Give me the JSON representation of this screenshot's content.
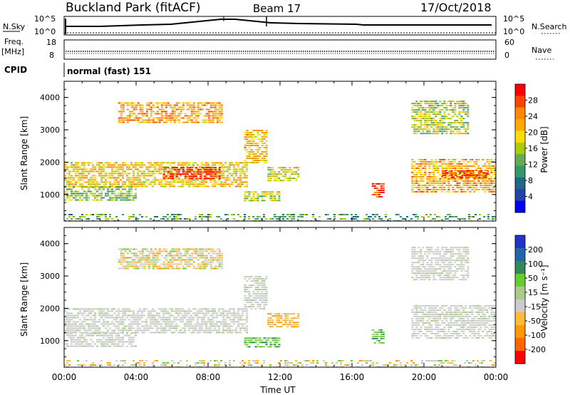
{
  "header": {
    "station": "Buckland Park (fitACF)",
    "beam": "Beam 17",
    "date": "17/Oct/2018"
  },
  "panels": {
    "noise": {
      "left_label": "N.Sky",
      "right_label": "N.Search",
      "left_ticks": [
        "10^5",
        "10^0"
      ],
      "right_ticks": [
        "10^5",
        "10^0"
      ]
    },
    "freq": {
      "left_label_1": "Freq.",
      "left_label_2": "[MHz]",
      "right_label": "Nave",
      "left_ticks": [
        "18",
        "8"
      ],
      "right_ticks": [
        "60",
        "0"
      ]
    },
    "cpid": {
      "label": "CPID",
      "text": "normal (fast) 151"
    }
  },
  "chart_data": [
    {
      "type": "heatmap",
      "title": "",
      "quantity": "Power",
      "ylabel": "Slant Range [km]",
      "xlabel": "",
      "ylim": [
        180,
        4500
      ],
      "y_ticks": [
        "1000",
        "2000",
        "3000",
        "4000"
      ],
      "colorbar_label": "Power [dB]",
      "colorbar_ticks": [
        "28",
        "24",
        "20",
        "16",
        "12",
        "8",
        "4"
      ],
      "colorbar_colors": [
        "#ff0000",
        "#ff4400",
        "#ff8800",
        "#ffaa00",
        "#ffdd00",
        "#aacc00",
        "#66aa55",
        "#339966",
        "#226688",
        "#2244aa",
        "#0000ff"
      ],
      "echo_regions": [
        {
          "t0": 0.0,
          "t1": 10.2,
          "r0": 1250,
          "r1": 2000,
          "level": 0.62
        },
        {
          "t0": 5.5,
          "t1": 8.7,
          "r0": 1500,
          "r1": 1850,
          "level": 0.95
        },
        {
          "t0": 3.0,
          "t1": 8.8,
          "r0": 3250,
          "r1": 3850,
          "level": 0.7
        },
        {
          "t0": 10.0,
          "t1": 11.3,
          "r0": 2000,
          "r1": 3000,
          "level": 0.65
        },
        {
          "t0": 11.3,
          "t1": 13.0,
          "r0": 1400,
          "r1": 1850,
          "level": 0.55
        },
        {
          "t0": 10.0,
          "t1": 12.0,
          "r0": 800,
          "r1": 1100,
          "level": 0.5
        },
        {
          "t0": 0.0,
          "t1": 4.0,
          "r0": 850,
          "r1": 1250,
          "level": 0.45
        },
        {
          "t0": 17.1,
          "t1": 17.7,
          "r0": 900,
          "r1": 1350,
          "level": 0.9
        },
        {
          "t0": 19.3,
          "t1": 24.0,
          "r0": 1100,
          "r1": 2100,
          "level": 0.7
        },
        {
          "t0": 21.0,
          "t1": 23.5,
          "r0": 1500,
          "r1": 1750,
          "level": 0.95
        },
        {
          "t0": 19.3,
          "t1": 22.5,
          "r0": 2900,
          "r1": 3900,
          "level": 0.5
        },
        {
          "t0": 0.0,
          "t1": 24.0,
          "r0": 180,
          "r1": 400,
          "level": 0.35
        }
      ]
    },
    {
      "type": "heatmap",
      "title": "",
      "quantity": "Velocity",
      "ylabel": "Slant Range [km]",
      "xlabel": "Time UT",
      "ylim": [
        180,
        4500
      ],
      "y_ticks": [
        "1000",
        "2000",
        "3000",
        "4000"
      ],
      "x_ticks": [
        "00:00",
        "04:00",
        "08:00",
        "12:00",
        "16:00",
        "20:00",
        "00:00"
      ],
      "colorbar_label": "Velocity [m s⁻¹]",
      "colorbar_ticks": [
        "200",
        "100",
        "50",
        "15",
        "-15",
        "-50",
        "-100",
        "-200"
      ],
      "colorbar_colors": [
        "#2233cc",
        "#2266aa",
        "#338855",
        "#66cc33",
        "#aacc88",
        "#cccccc",
        "#ffbb33",
        "#ff9900",
        "#ff6600",
        "#ff0000"
      ],
      "echo_regions": [
        {
          "t0": 0.0,
          "t1": 10.2,
          "r0": 1250,
          "r1": 2000,
          "class": "ground"
        },
        {
          "t0": 3.0,
          "t1": 8.8,
          "r0": 3250,
          "r1": 3850,
          "class": "mixed"
        },
        {
          "t0": 10.0,
          "t1": 11.3,
          "r0": 2000,
          "r1": 3000,
          "class": "ground"
        },
        {
          "t0": 11.3,
          "t1": 13.0,
          "r0": 1400,
          "r1": 1850,
          "class": "away"
        },
        {
          "t0": 10.0,
          "t1": 12.0,
          "r0": 800,
          "r1": 1100,
          "class": "toward"
        },
        {
          "t0": 0.0,
          "t1": 4.0,
          "r0": 850,
          "r1": 1250,
          "class": "ground"
        },
        {
          "t0": 17.1,
          "t1": 17.7,
          "r0": 900,
          "r1": 1350,
          "class": "toward"
        },
        {
          "t0": 19.3,
          "t1": 24.0,
          "r0": 1100,
          "r1": 2100,
          "class": "ground"
        },
        {
          "t0": 19.3,
          "t1": 22.5,
          "r0": 2900,
          "r1": 3900,
          "class": "ground"
        },
        {
          "t0": 0.0,
          "t1": 24.0,
          "r0": 180,
          "r1": 400,
          "class": "mixed"
        }
      ]
    }
  ]
}
